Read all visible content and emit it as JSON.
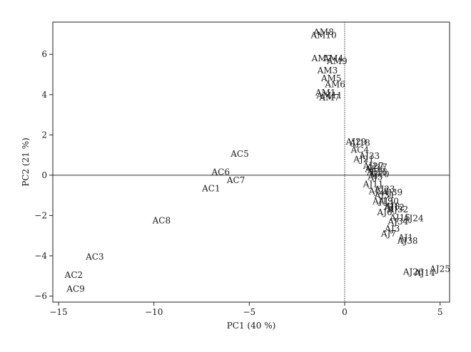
{
  "chart_data": {
    "type": "scatter",
    "xlabel": "PC1 (40 %)",
    "ylabel": "PC2 (21 %)",
    "xlim": [
      -15.3,
      5.5
    ],
    "ylim": [
      -6.3,
      7.6
    ],
    "xticks": [
      -15,
      -10,
      -5,
      0,
      5
    ],
    "yticks": [
      -6,
      -4,
      -2,
      0,
      2,
      4,
      6
    ],
    "grid": false,
    "reference_lines": {
      "x": 0,
      "y": 0
    },
    "points": [
      {
        "label": "AM8",
        "x": -1.1,
        "y": 7.1
      },
      {
        "label": "AM10",
        "x": -1.1,
        "y": 6.95
      },
      {
        "label": "AM2",
        "x": -1.2,
        "y": 5.8
      },
      {
        "label": "AM4",
        "x": -0.6,
        "y": 5.8
      },
      {
        "label": "AM9",
        "x": -0.4,
        "y": 5.65
      },
      {
        "label": "AM3",
        "x": -0.9,
        "y": 5.2
      },
      {
        "label": "AM5",
        "x": -0.7,
        "y": 4.8
      },
      {
        "label": "AM6",
        "x": -0.5,
        "y": 4.5
      },
      {
        "label": "AM1",
        "x": -1.0,
        "y": 4.1
      },
      {
        "label": "AM11",
        "x": -0.8,
        "y": 3.95
      },
      {
        "label": "AM7",
        "x": -0.8,
        "y": 3.85
      },
      {
        "label": "AC5",
        "x": -5.5,
        "y": 1.05
      },
      {
        "label": "AC6",
        "x": -6.5,
        "y": 0.15
      },
      {
        "label": "AC7",
        "x": -5.7,
        "y": -0.25
      },
      {
        "label": "AC1",
        "x": -7.0,
        "y": -0.65
      },
      {
        "label": "AC8",
        "x": -9.6,
        "y": -2.25
      },
      {
        "label": "AC3",
        "x": -13.1,
        "y": -4.05
      },
      {
        "label": "AC2",
        "x": -14.2,
        "y": -4.95
      },
      {
        "label": "AC9",
        "x": -14.1,
        "y": -5.65
      },
      {
        "label": "AJ29",
        "x": 0.6,
        "y": 1.65
      },
      {
        "label": "AJ18",
        "x": 0.8,
        "y": 1.6
      },
      {
        "label": "AC4",
        "x": 0.8,
        "y": 1.25
      },
      {
        "label": "AJ33",
        "x": 1.3,
        "y": 0.95
      },
      {
        "label": "AJ21",
        "x": 1.0,
        "y": 0.8
      },
      {
        "label": "AJ27",
        "x": 1.5,
        "y": 0.45
      },
      {
        "label": "AJ17",
        "x": 1.7,
        "y": 0.4
      },
      {
        "label": "AJ36",
        "x": 1.6,
        "y": 0.3
      },
      {
        "label": "AJ16",
        "x": 1.7,
        "y": 0.15
      },
      {
        "label": "AJ10",
        "x": 1.8,
        "y": 0.05
      },
      {
        "label": "AJ5",
        "x": 1.6,
        "y": -0.1
      },
      {
        "label": "AJ11",
        "x": 1.5,
        "y": -0.45
      },
      {
        "label": "AJ23",
        "x": 2.1,
        "y": -0.7
      },
      {
        "label": "AJ22",
        "x": 1.8,
        "y": -0.8
      },
      {
        "label": "AJ39",
        "x": 2.5,
        "y": -0.85
      },
      {
        "label": "AJ31",
        "x": 2.1,
        "y": -1.0
      },
      {
        "label": "AJ30",
        "x": 2.3,
        "y": -1.3
      },
      {
        "label": "AJ19",
        "x": 2.0,
        "y": -1.3
      },
      {
        "label": "AJ8",
        "x": 2.5,
        "y": -1.55
      },
      {
        "label": "AJ12",
        "x": 2.6,
        "y": -1.6
      },
      {
        "label": "AJ32",
        "x": 2.8,
        "y": -1.7
      },
      {
        "label": "AJ6",
        "x": 2.1,
        "y": -1.85
      },
      {
        "label": "AJ15",
        "x": 2.9,
        "y": -2.1
      },
      {
        "label": "AJ24",
        "x": 3.6,
        "y": -2.15
      },
      {
        "label": "AJ34",
        "x": 2.8,
        "y": -2.3
      },
      {
        "label": "AJ3",
        "x": 2.5,
        "y": -2.65
      },
      {
        "label": "AJ7",
        "x": 2.3,
        "y": -2.9
      },
      {
        "label": "AJ1",
        "x": 3.2,
        "y": -3.1
      },
      {
        "label": "AJ38",
        "x": 3.3,
        "y": -3.25
      },
      {
        "label": "AJ25",
        "x": 5.0,
        "y": -4.65
      },
      {
        "label": "AJ26",
        "x": 3.6,
        "y": -4.8
      },
      {
        "label": "AJ14",
        "x": 4.2,
        "y": -4.85
      }
    ]
  }
}
